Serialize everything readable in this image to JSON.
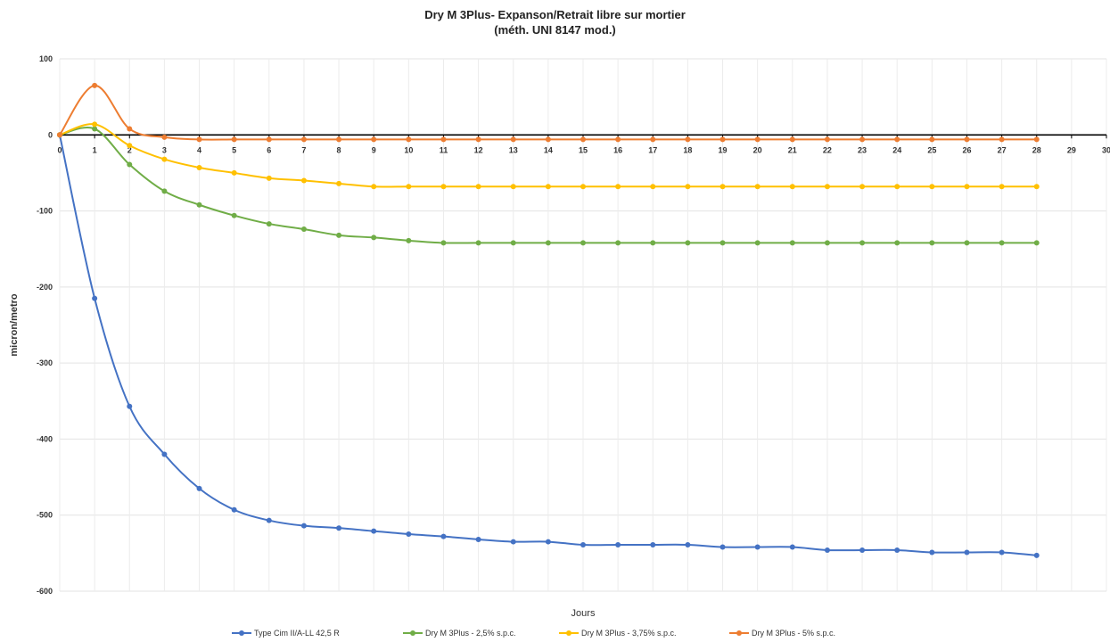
{
  "chart_data": {
    "type": "line",
    "title": "Dry M 3Plus-  Expanson/Retrait libre sur mortier",
    "subtitle": "(méth. UNI 8147 mod.)",
    "xlabel": "Jours",
    "ylabel": "micron/metro",
    "xlim": [
      0,
      30
    ],
    "ylim": [
      -600,
      100
    ],
    "yticks": [
      100,
      0,
      -100,
      -200,
      -300,
      -400,
      -500,
      -600
    ],
    "xticks": [
      0,
      1,
      2,
      3,
      4,
      5,
      6,
      7,
      8,
      9,
      10,
      11,
      12,
      13,
      14,
      15,
      16,
      17,
      18,
      19,
      20,
      21,
      22,
      23,
      24,
      25,
      26,
      27,
      28,
      29,
      30
    ],
    "grid": true,
    "legend_position": "bottom",
    "x": [
      0,
      1,
      2,
      3,
      4,
      5,
      6,
      7,
      8,
      9,
      10,
      11,
      12,
      13,
      14,
      15,
      16,
      17,
      18,
      19,
      20,
      21,
      22,
      23,
      24,
      25,
      26,
      27,
      28
    ],
    "series": [
      {
        "name": "Type Cim II/A-LL 42,5 R",
        "color": "#4472C4",
        "values": [
          0,
          -215,
          -357,
          -420,
          -465,
          -493,
          -507,
          -514,
          -517,
          -521,
          -525,
          -528,
          -532,
          -535,
          -535,
          -539,
          -539,
          -539,
          -539,
          -542,
          -542,
          -542,
          -546,
          -546,
          -546,
          -549,
          -549,
          -549,
          -553
        ]
      },
      {
        "name": "Dry M 3Plus - 2,5% s.p.c.",
        "color": "#70AD47",
        "values": [
          0,
          8,
          -39,
          -74,
          -92,
          -106,
          -117,
          -124,
          -132,
          -135,
          -139,
          -142,
          -142,
          -142,
          -142,
          -142,
          -142,
          -142,
          -142,
          -142,
          -142,
          -142,
          -142,
          -142,
          -142,
          -142,
          -142,
          -142,
          -142
        ]
      },
      {
        "name": "Dry M 3Plus - 3,75% s.p.c.",
        "color": "#FFC000",
        "values": [
          0,
          14,
          -14,
          -32,
          -43,
          -50,
          -57,
          -60,
          -64,
          -68,
          -68,
          -68,
          -68,
          -68,
          -68,
          -68,
          -68,
          -68,
          -68,
          -68,
          -68,
          -68,
          -68,
          -68,
          -68,
          -68,
          -68,
          -68,
          -68
        ]
      },
      {
        "name": "Dry M 3Plus - 5% s.p.c.",
        "color": "#ED7D31",
        "values": [
          0,
          65,
          8,
          -3,
          -6,
          -6,
          -6,
          -6,
          -6,
          -6,
          -6,
          -6,
          -6,
          -6,
          -6,
          -6,
          -6,
          -6,
          -6,
          -6,
          -6,
          -6,
          -6,
          -6,
          -6,
          -6,
          -6,
          -6,
          -6
        ]
      }
    ]
  }
}
